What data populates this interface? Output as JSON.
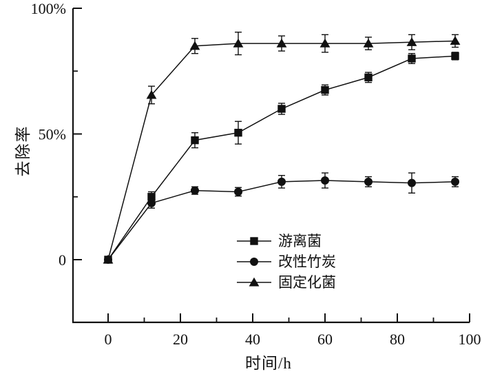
{
  "chart_data": {
    "type": "line",
    "x": [
      0,
      12,
      24,
      36,
      48,
      60,
      72,
      84,
      96
    ],
    "series": [
      {
        "name": "游离菌",
        "marker": "square",
        "values": [
          0,
          25,
          47.5,
          50.5,
          60,
          67.5,
          72.5,
          80,
          81
        ],
        "errors": [
          1,
          2,
          3,
          4.5,
          2.2,
          2,
          2,
          2,
          1.5
        ]
      },
      {
        "name": "改性竹炭",
        "marker": "circle",
        "values": [
          0,
          22.5,
          27.5,
          27,
          31,
          31.5,
          31,
          30.5,
          31
        ],
        "errors": [
          1,
          2,
          1.5,
          1.7,
          2.5,
          3,
          2,
          4,
          2
        ]
      },
      {
        "name": "固定化菌",
        "marker": "triangle",
        "values": [
          0,
          65.5,
          85,
          86,
          86,
          86,
          86,
          86.5,
          87
        ],
        "errors": [
          1,
          3.5,
          3,
          4.5,
          3,
          3.5,
          2.5,
          3,
          2.5
        ]
      }
    ],
    "xlabel": "时间/h",
    "ylabel": "去除率",
    "x_ticks": [
      0,
      20,
      40,
      60,
      80,
      100
    ],
    "x_minor_ticks": [
      10,
      30,
      50,
      70,
      90
    ],
    "y_ticks": [
      {
        "value": 0,
        "label": "0"
      },
      {
        "value": 50,
        "label": "50%"
      },
      {
        "value": 100,
        "label": "100%"
      }
    ],
    "y_minor_ticks": [
      25,
      75
    ],
    "xlim": [
      -10,
      100
    ],
    "ylim": [
      -25,
      100
    ],
    "grid": false,
    "legend_position": "inside-bottom-center",
    "line_color": "#111111",
    "background": "#ffffff",
    "error_bars": true
  }
}
